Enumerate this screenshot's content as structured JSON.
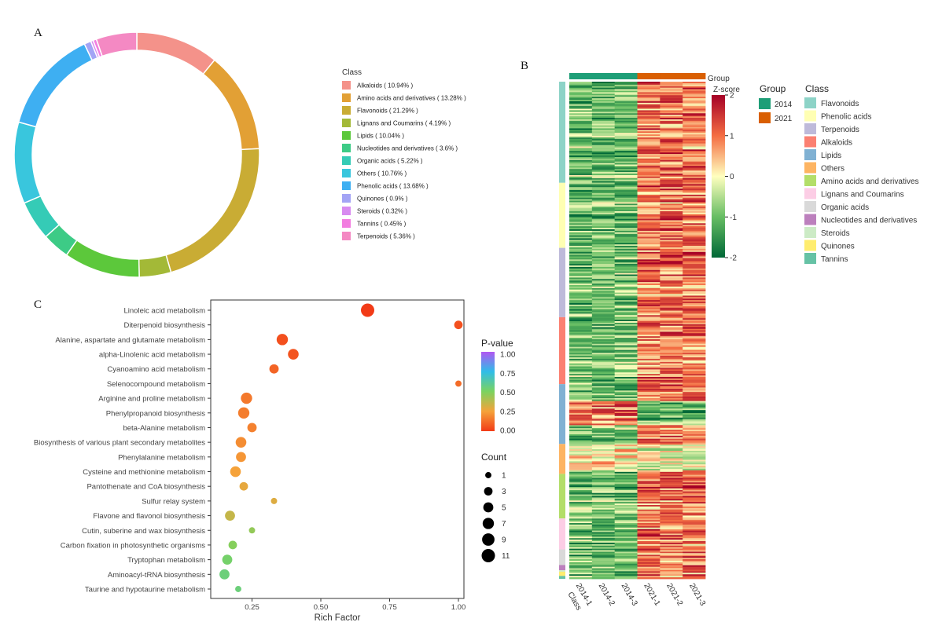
{
  "panel_labels": {
    "a": "A",
    "b": "B",
    "c": "C"
  },
  "chart_data": [
    {
      "type": "pie",
      "variant": "donut",
      "legend_title": "Class",
      "slices": [
        {
          "name": "Alkaloids",
          "label": "Alkaloids ( 10.94% )",
          "value": 10.94,
          "color": "#F4928A"
        },
        {
          "name": "Amino acids and derivatives",
          "label": "Amino acids and derivatives ( 13.28% )",
          "value": 13.28,
          "color": "#E2A035"
        },
        {
          "name": "Flavonoids",
          "label": "Flavonoids ( 21.29% )",
          "value": 21.29,
          "color": "#C9AC34"
        },
        {
          "name": "Lignans and Coumarins",
          "label": "Lignans and Coumarins ( 4.19% )",
          "value": 4.19,
          "color": "#A3B937"
        },
        {
          "name": "Lipids",
          "label": "Lipids ( 10.04% )",
          "value": 10.04,
          "color": "#5CC83B"
        },
        {
          "name": "Nucleotides and derivatives",
          "label": "Nucleotides and derivatives ( 3.6% )",
          "value": 3.6,
          "color": "#3DCB86"
        },
        {
          "name": "Organic acids",
          "label": "Organic acids ( 5.22% )",
          "value": 5.22,
          "color": "#35CBB6"
        },
        {
          "name": "Others",
          "label": "Others ( 10.76% )",
          "value": 10.76,
          "color": "#39C6DD"
        },
        {
          "name": "Phenolic acids",
          "label": "Phenolic acids ( 13.68% )",
          "value": 13.68,
          "color": "#3EAFF2"
        },
        {
          "name": "Quinones",
          "label": "Quinones ( 0.9% )",
          "value": 0.9,
          "color": "#A3A4F5"
        },
        {
          "name": "Steroids",
          "label": "Steroids ( 0.32% )",
          "value": 0.32,
          "color": "#D88AF0"
        },
        {
          "name": "Tannins",
          "label": "Tannins ( 0.45% )",
          "value": 0.45,
          "color": "#F27DE0"
        },
        {
          "name": "Terpenoids",
          "label": "Terpenoids ( 5.36% )",
          "value": 5.36,
          "color": "#F489C3"
        }
      ]
    },
    {
      "type": "heatmap",
      "columns": [
        "2014-1",
        "2014-2",
        "2014-3",
        "2021-1",
        "2021-2",
        "2021-3"
      ],
      "class_axis_label": "Class",
      "group_track_label": "Group",
      "group_legend": {
        "title": "Group",
        "items": [
          {
            "name": "2014",
            "color": "#1E9E77"
          },
          {
            "name": "2021",
            "color": "#D95F02"
          }
        ]
      },
      "colorbar": {
        "title": "Z-score",
        "ticks": [
          2,
          1,
          0,
          -1,
          -2
        ],
        "range": [
          -2,
          2
        ]
      },
      "class_legend": {
        "title": "Class",
        "items": [
          {
            "name": "Flavonoids",
            "color": "#8DD3C7"
          },
          {
            "name": "Phenolic acids",
            "color": "#FFFFB3"
          },
          {
            "name": "Terpenoids",
            "color": "#BEBADA"
          },
          {
            "name": "Alkaloids",
            "color": "#FB8072"
          },
          {
            "name": "Lipids",
            "color": "#80B1D3"
          },
          {
            "name": "Others",
            "color": "#FDB462"
          },
          {
            "name": "Amino acids and derivatives",
            "color": "#B3DE69"
          },
          {
            "name": "Lignans and Coumarins",
            "color": "#FCCDE5"
          },
          {
            "name": "Organic acids",
            "color": "#D9D9D9"
          },
          {
            "name": "Nucleotides and derivatives",
            "color": "#BC80BD"
          },
          {
            "name": "Steroids",
            "color": "#CCEBC5"
          },
          {
            "name": "Quinones",
            "color": "#FFED6F"
          },
          {
            "name": "Tannins",
            "color": "#66C2A5"
          }
        ]
      },
      "class_bar_order": [
        "Flavonoids",
        "Phenolic acids",
        "Terpenoids",
        "Alkaloids",
        "Lipids",
        "Others",
        "Amino acids and derivatives",
        "Lignans and Coumarins",
        "Organic acids",
        "Nucleotides and derivatives",
        "Steroids",
        "Quinones",
        "Tannins"
      ],
      "class_bar_weights": [
        21.3,
        13.7,
        14.6,
        14.1,
        12.6,
        6.3,
        9.4,
        6.5,
        3.3,
        1.1,
        0.3,
        0.9,
        0.6
      ]
    },
    {
      "type": "scatter",
      "title": "",
      "xlabel": "Rich Factor",
      "xlim": [
        0.1,
        1.02
      ],
      "xticks": [
        0.25,
        0.5,
        0.75,
        1.0
      ],
      "xtick_labels": [
        "0.25",
        "0.50",
        "0.75",
        "1.00"
      ],
      "pvalue_legend": {
        "title": "P-value",
        "ticks": [
          "1.00",
          "0.75",
          "0.50",
          "0.25",
          "0.00"
        ],
        "range": [
          0,
          1
        ]
      },
      "count_legend": {
        "title": "Count",
        "values": [
          1,
          3,
          5,
          7,
          9,
          11
        ]
      },
      "points": [
        {
          "pathway": "Linoleic acid metabolism",
          "rich_factor": 0.67,
          "p_value": 0.0,
          "count": 11
        },
        {
          "pathway": "Diterpenoid biosynthesis",
          "rich_factor": 1.0,
          "p_value": 0.05,
          "count": 3
        },
        {
          "pathway": "Alanine, aspartate and glutamate metabolism",
          "rich_factor": 0.36,
          "p_value": 0.05,
          "count": 7
        },
        {
          "pathway": "alpha-Linolenic acid metabolism",
          "rich_factor": 0.4,
          "p_value": 0.06,
          "count": 6
        },
        {
          "pathway": "Cyanoamino acid metabolism",
          "rich_factor": 0.33,
          "p_value": 0.1,
          "count": 4
        },
        {
          "pathway": "Selenocompound metabolism",
          "rich_factor": 1.0,
          "p_value": 0.12,
          "count": 1
        },
        {
          "pathway": "Arginine and proline metabolism",
          "rich_factor": 0.23,
          "p_value": 0.15,
          "count": 7
        },
        {
          "pathway": "Phenylpropanoid biosynthesis",
          "rich_factor": 0.22,
          "p_value": 0.16,
          "count": 7
        },
        {
          "pathway": "beta-Alanine metabolism",
          "rich_factor": 0.25,
          "p_value": 0.17,
          "count": 4
        },
        {
          "pathway": "Biosynthesis of various plant secondary metabolites",
          "rich_factor": 0.21,
          "p_value": 0.2,
          "count": 6
        },
        {
          "pathway": "Phenylalanine metabolism",
          "rich_factor": 0.21,
          "p_value": 0.22,
          "count": 5
        },
        {
          "pathway": "Cysteine and methionine metabolism",
          "rich_factor": 0.19,
          "p_value": 0.25,
          "count": 6
        },
        {
          "pathway": "Pantothenate and CoA biosynthesis",
          "rich_factor": 0.22,
          "p_value": 0.28,
          "count": 3
        },
        {
          "pathway": "Sulfur relay system",
          "rich_factor": 0.33,
          "p_value": 0.3,
          "count": 1
        },
        {
          "pathway": "Flavone and flavonol biosynthesis",
          "rich_factor": 0.17,
          "p_value": 0.35,
          "count": 5
        },
        {
          "pathway": "Cutin, suberine and wax biosynthesis",
          "rich_factor": 0.25,
          "p_value": 0.45,
          "count": 1
        },
        {
          "pathway": "Carbon fixation in photosynthetic organisms",
          "rich_factor": 0.18,
          "p_value": 0.48,
          "count": 3
        },
        {
          "pathway": "Tryptophan metabolism",
          "rich_factor": 0.16,
          "p_value": 0.52,
          "count": 5
        },
        {
          "pathway": "Aminoacyl-tRNA biosynthesis",
          "rich_factor": 0.15,
          "p_value": 0.55,
          "count": 5
        },
        {
          "pathway": "Taurine and hypotaurine metabolism",
          "rich_factor": 0.2,
          "p_value": 0.55,
          "count": 1
        }
      ]
    }
  ]
}
